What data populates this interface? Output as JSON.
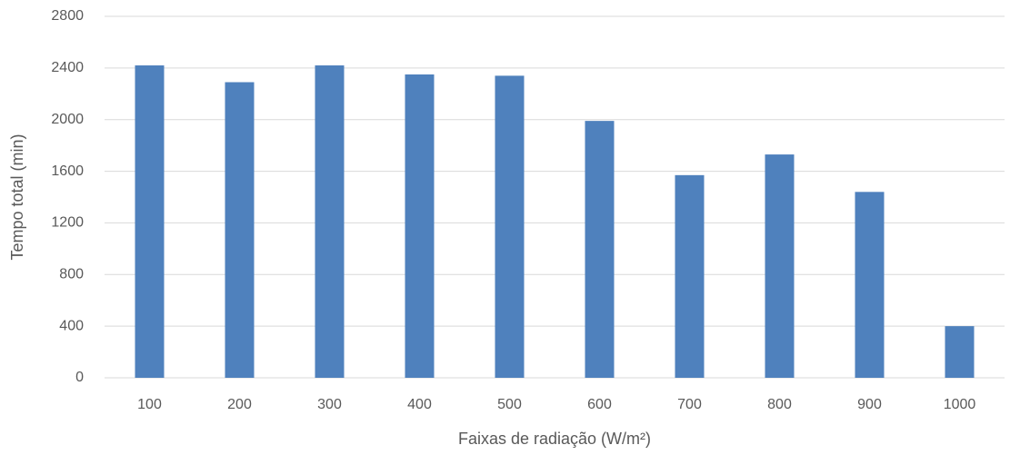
{
  "chart_data": {
    "type": "bar",
    "x_label": "Faixas de radiação (W/m²)",
    "y_label": "Tempo total (min)",
    "categories": [
      "100",
      "200",
      "300",
      "400",
      "500",
      "600",
      "700",
      "800",
      "900",
      "1000"
    ],
    "values": [
      2420,
      2290,
      2420,
      2350,
      2340,
      1990,
      1570,
      1730,
      1440,
      400
    ],
    "color": "#4f81bd",
    "ylim": [
      0,
      2800
    ],
    "yticks": [
      0,
      400,
      800,
      1200,
      1600,
      2000,
      2400,
      2800
    ],
    "grid": true
  }
}
